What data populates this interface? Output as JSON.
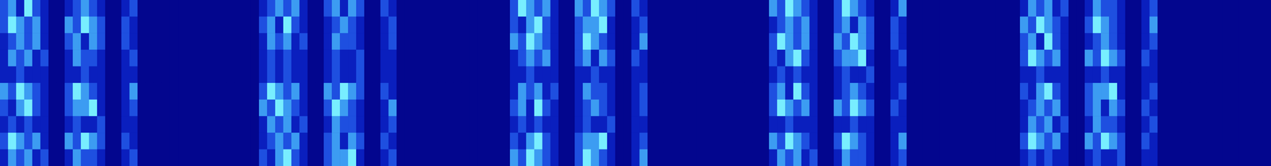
{
  "chart_data": {
    "type": "heatmap",
    "tick_labels": false,
    "zlim": [
      0,
      4
    ],
    "z": [
      [
        2,
        3,
        1,
        4,
        2,
        1,
        0,
        0,
        1,
        2,
        3,
        2,
        1,
        0,
        0,
        1,
        2,
        0,
        0,
        0,
        0,
        0,
        0,
        0,
        0,
        0,
        0,
        0,
        0,
        0,
        0,
        0,
        1,
        2,
        3,
        2,
        3,
        1,
        0,
        0,
        2,
        3,
        1,
        3,
        2,
        0,
        0,
        2,
        1,
        0,
        0,
        0,
        0,
        0,
        0,
        0,
        0,
        0,
        0,
        0,
        0,
        0,
        0,
        2,
        4,
        3,
        2,
        3,
        1,
        0,
        0,
        3,
        2,
        4,
        3,
        2,
        0,
        0,
        2,
        1,
        0,
        0,
        0,
        0,
        0,
        0,
        0,
        0,
        0,
        0,
        0,
        0,
        0,
        0,
        0,
        3,
        2,
        4,
        3,
        2,
        1,
        0,
        0,
        2,
        4,
        3,
        2,
        1,
        0,
        0,
        1,
        3,
        0,
        0,
        0,
        0,
        0,
        0,
        0,
        0,
        0,
        0,
        0,
        0,
        0,
        0,
        1,
        3,
        2,
        3,
        1,
        2,
        0,
        0,
        1,
        3,
        2,
        2,
        1,
        0,
        0,
        1,
        2,
        0,
        0,
        0,
        0,
        0,
        0,
        0,
        0,
        0,
        0,
        0,
        0,
        0,
        0
      ],
      [
        2,
        4,
        3,
        2,
        3,
        1,
        0,
        0,
        3,
        2,
        4,
        3,
        2,
        0,
        0,
        2,
        1,
        0,
        0,
        0,
        0,
        0,
        0,
        0,
        0,
        0,
        0,
        0,
        0,
        0,
        0,
        0,
        2,
        3,
        1,
        4,
        2,
        1,
        0,
        0,
        1,
        2,
        3,
        2,
        1,
        0,
        0,
        1,
        2,
        0,
        0,
        0,
        0,
        0,
        0,
        0,
        0,
        0,
        0,
        0,
        0,
        0,
        0,
        2,
        1,
        3,
        4,
        2,
        1,
        0,
        0,
        2,
        3,
        3,
        4,
        1,
        0,
        0,
        1,
        2,
        0,
        0,
        0,
        0,
        0,
        0,
        0,
        0,
        0,
        0,
        0,
        0,
        0,
        0,
        0,
        1,
        2,
        3,
        2,
        3,
        1,
        0,
        0,
        2,
        3,
        1,
        3,
        2,
        0,
        0,
        2,
        1,
        0,
        0,
        0,
        0,
        0,
        0,
        0,
        0,
        0,
        0,
        0,
        0,
        0,
        0,
        3,
        2,
        4,
        3,
        2,
        1,
        0,
        0,
        2,
        4,
        3,
        2,
        1,
        0,
        0,
        1,
        3,
        0,
        0,
        0,
        0,
        0,
        0,
        0,
        0,
        0,
        0,
        0,
        0,
        0,
        0
      ],
      [
        1,
        2,
        3,
        2,
        3,
        1,
        0,
        0,
        2,
        3,
        1,
        3,
        2,
        0,
        0,
        2,
        1,
        0,
        0,
        0,
        0,
        0,
        0,
        0,
        0,
        0,
        0,
        0,
        0,
        0,
        0,
        0,
        1,
        3,
        2,
        3,
        1,
        2,
        0,
        0,
        1,
        3,
        2,
        2,
        1,
        0,
        0,
        1,
        2,
        0,
        0,
        0,
        0,
        0,
        0,
        0,
        0,
        0,
        0,
        0,
        0,
        0,
        0,
        3,
        2,
        4,
        3,
        2,
        1,
        0,
        0,
        2,
        4,
        3,
        2,
        1,
        0,
        0,
        1,
        3,
        0,
        0,
        0,
        0,
        0,
        0,
        0,
        0,
        0,
        0,
        0,
        0,
        0,
        0,
        0,
        2,
        4,
        3,
        2,
        3,
        1,
        0,
        0,
        3,
        2,
        4,
        3,
        2,
        0,
        0,
        2,
        1,
        0,
        0,
        0,
        0,
        0,
        0,
        0,
        0,
        0,
        0,
        0,
        0,
        0,
        0,
        2,
        3,
        1,
        4,
        2,
        1,
        0,
        0,
        1,
        2,
        3,
        2,
        1,
        0,
        0,
        1,
        2,
        0,
        0,
        0,
        0,
        0,
        0,
        0,
        0,
        0,
        0,
        0,
        0,
        0,
        0
      ],
      [
        1,
        3,
        2,
        3,
        1,
        2,
        0,
        0,
        1,
        3,
        2,
        2,
        1,
        0,
        0,
        1,
        2,
        0,
        0,
        0,
        0,
        0,
        0,
        0,
        0,
        0,
        0,
        0,
        0,
        0,
        0,
        0,
        1,
        2,
        1,
        2,
        1,
        1,
        0,
        0,
        1,
        2,
        1,
        1,
        2,
        0,
        0,
        1,
        1,
        0,
        0,
        0,
        0,
        0,
        0,
        0,
        0,
        0,
        0,
        0,
        0,
        0,
        0,
        1,
        2,
        3,
        2,
        3,
        1,
        0,
        0,
        2,
        3,
        1,
        3,
        2,
        0,
        0,
        2,
        1,
        0,
        0,
        0,
        0,
        0,
        0,
        0,
        0,
        0,
        0,
        0,
        0,
        0,
        0,
        0,
        2,
        1,
        3,
        4,
        2,
        1,
        0,
        0,
        2,
        3,
        3,
        4,
        1,
        0,
        0,
        1,
        2,
        0,
        0,
        0,
        0,
        0,
        0,
        0,
        0,
        0,
        0,
        0,
        0,
        0,
        0,
        2,
        4,
        3,
        2,
        3,
        1,
        0,
        0,
        3,
        2,
        4,
        3,
        2,
        0,
        0,
        2,
        1,
        0,
        0,
        0,
        0,
        0,
        0,
        0,
        0,
        0,
        0,
        0,
        0,
        0,
        0
      ],
      [
        1,
        1,
        2,
        1,
        1,
        1,
        0,
        0,
        1,
        1,
        2,
        1,
        1,
        0,
        0,
        1,
        1,
        0,
        0,
        0,
        0,
        0,
        0,
        0,
        0,
        0,
        0,
        0,
        0,
        0,
        0,
        0,
        1,
        2,
        1,
        2,
        1,
        1,
        0,
        0,
        1,
        2,
        1,
        1,
        2,
        0,
        0,
        1,
        1,
        0,
        0,
        0,
        0,
        0,
        0,
        0,
        0,
        0,
        0,
        0,
        0,
        0,
        0,
        1,
        1,
        2,
        1,
        1,
        1,
        0,
        0,
        1,
        1,
        2,
        1,
        1,
        0,
        0,
        1,
        1,
        0,
        0,
        0,
        0,
        0,
        0,
        0,
        0,
        0,
        0,
        0,
        0,
        0,
        0,
        0,
        1,
        2,
        1,
        2,
        1,
        1,
        0,
        0,
        1,
        2,
        1,
        1,
        2,
        0,
        0,
        1,
        1,
        0,
        0,
        0,
        0,
        0,
        0,
        0,
        0,
        0,
        0,
        0,
        0,
        0,
        0,
        1,
        1,
        2,
        1,
        1,
        1,
        0,
        0,
        1,
        1,
        2,
        1,
        1,
        0,
        0,
        1,
        1,
        0,
        0,
        0,
        0,
        0,
        0,
        0,
        0,
        0,
        0,
        0,
        0,
        0,
        0
      ],
      [
        3,
        2,
        4,
        3,
        2,
        1,
        0,
        0,
        2,
        4,
        3,
        2,
        1,
        0,
        0,
        1,
        3,
        0,
        0,
        0,
        0,
        0,
        0,
        0,
        0,
        0,
        0,
        0,
        0,
        0,
        0,
        0,
        2,
        4,
        3,
        2,
        3,
        1,
        0,
        0,
        3,
        2,
        4,
        3,
        2,
        0,
        0,
        2,
        1,
        0,
        0,
        0,
        0,
        0,
        0,
        0,
        0,
        0,
        0,
        0,
        0,
        0,
        0,
        1,
        3,
        2,
        3,
        1,
        2,
        0,
        0,
        1,
        3,
        2,
        2,
        1,
        0,
        0,
        1,
        2,
        0,
        0,
        0,
        0,
        0,
        0,
        0,
        0,
        0,
        0,
        0,
        0,
        0,
        0,
        0,
        2,
        3,
        1,
        4,
        2,
        1,
        0,
        0,
        1,
        2,
        3,
        2,
        1,
        0,
        0,
        1,
        2,
        0,
        0,
        0,
        0,
        0,
        0,
        0,
        0,
        0,
        0,
        0,
        0,
        0,
        0,
        2,
        1,
        3,
        4,
        2,
        1,
        0,
        0,
        2,
        3,
        3,
        4,
        1,
        0,
        0,
        1,
        2,
        0,
        0,
        0,
        0,
        0,
        0,
        0,
        0,
        0,
        0,
        0,
        0,
        0,
        0
      ],
      [
        2,
        1,
        3,
        4,
        2,
        1,
        0,
        0,
        2,
        3,
        3,
        4,
        1,
        0,
        0,
        1,
        2,
        0,
        0,
        0,
        0,
        0,
        0,
        0,
        0,
        0,
        0,
        0,
        0,
        0,
        0,
        0,
        3,
        2,
        4,
        3,
        2,
        1,
        0,
        0,
        2,
        4,
        3,
        2,
        1,
        0,
        0,
        1,
        3,
        0,
        0,
        0,
        0,
        0,
        0,
        0,
        0,
        0,
        0,
        0,
        0,
        0,
        0,
        2,
        3,
        1,
        4,
        2,
        1,
        0,
        0,
        1,
        2,
        3,
        2,
        1,
        0,
        0,
        1,
        2,
        0,
        0,
        0,
        0,
        0,
        0,
        0,
        0,
        0,
        0,
        0,
        0,
        0,
        0,
        0,
        2,
        4,
        3,
        2,
        3,
        1,
        0,
        0,
        3,
        2,
        4,
        3,
        2,
        0,
        0,
        2,
        1,
        0,
        0,
        0,
        0,
        0,
        0,
        0,
        0,
        0,
        0,
        0,
        0,
        0,
        0,
        1,
        2,
        3,
        2,
        3,
        1,
        0,
        0,
        2,
        3,
        1,
        3,
        2,
        0,
        0,
        2,
        1,
        0,
        0,
        0,
        0,
        0,
        0,
        0,
        0,
        0,
        0,
        0,
        0,
        0,
        0
      ],
      [
        1,
        2,
        1,
        2,
        1,
        1,
        0,
        0,
        1,
        2,
        1,
        1,
        2,
        0,
        0,
        1,
        1,
        0,
        0,
        0,
        0,
        0,
        0,
        0,
        0,
        0,
        0,
        0,
        0,
        0,
        0,
        0,
        1,
        3,
        2,
        3,
        1,
        2,
        0,
        0,
        1,
        3,
        2,
        2,
        1,
        0,
        0,
        1,
        2,
        0,
        0,
        0,
        0,
        0,
        0,
        0,
        0,
        0,
        0,
        0,
        0,
        0,
        0,
        1,
        2,
        1,
        2,
        1,
        1,
        0,
        0,
        1,
        2,
        1,
        1,
        2,
        0,
        0,
        1,
        1,
        0,
        0,
        0,
        0,
        0,
        0,
        0,
        0,
        0,
        0,
        0,
        0,
        0,
        0,
        0,
        1,
        1,
        2,
        1,
        1,
        1,
        0,
        0,
        1,
        1,
        2,
        1,
        1,
        0,
        0,
        1,
        1,
        0,
        0,
        0,
        0,
        0,
        0,
        0,
        0,
        0,
        0,
        0,
        0,
        0,
        0,
        1,
        3,
        2,
        3,
        1,
        2,
        0,
        0,
        1,
        3,
        2,
        2,
        1,
        0,
        0,
        1,
        2,
        0,
        0,
        0,
        0,
        0,
        0,
        0,
        0,
        0,
        0,
        0,
        0,
        0,
        0
      ],
      [
        2,
        4,
        3,
        2,
        3,
        1,
        0,
        0,
        3,
        2,
        4,
        3,
        2,
        0,
        0,
        2,
        1,
        0,
        0,
        0,
        0,
        0,
        0,
        0,
        0,
        0,
        0,
        0,
        0,
        0,
        0,
        0,
        1,
        2,
        3,
        2,
        3,
        1,
        0,
        0,
        2,
        3,
        1,
        3,
        2,
        0,
        0,
        2,
        1,
        0,
        0,
        0,
        0,
        0,
        0,
        0,
        0,
        0,
        0,
        0,
        0,
        0,
        0,
        2,
        1,
        3,
        4,
        2,
        1,
        0,
        0,
        2,
        3,
        3,
        4,
        1,
        0,
        0,
        1,
        2,
        0,
        0,
        0,
        0,
        0,
        0,
        0,
        0,
        0,
        0,
        0,
        0,
        0,
        0,
        0,
        3,
        2,
        4,
        3,
        2,
        1,
        0,
        0,
        2,
        4,
        3,
        2,
        1,
        0,
        0,
        1,
        3,
        0,
        0,
        0,
        0,
        0,
        0,
        0,
        0,
        0,
        0,
        0,
        0,
        0,
        0,
        2,
        4,
        3,
        2,
        3,
        1,
        0,
        0,
        3,
        2,
        4,
        3,
        2,
        0,
        0,
        2,
        1,
        0,
        0,
        0,
        0,
        0,
        0,
        0,
        0,
        0,
        0,
        0,
        0,
        0,
        0
      ],
      [
        1,
        3,
        2,
        3,
        1,
        2,
        0,
        0,
        1,
        3,
        2,
        2,
        1,
        0,
        0,
        1,
        2,
        0,
        0,
        0,
        0,
        0,
        0,
        0,
        0,
        0,
        0,
        0,
        0,
        0,
        0,
        0,
        2,
        1,
        3,
        4,
        2,
        1,
        0,
        0,
        2,
        3,
        3,
        4,
        1,
        0,
        0,
        1,
        2,
        0,
        0,
        0,
        0,
        0,
        0,
        0,
        0,
        0,
        0,
        0,
        0,
        0,
        0,
        3,
        2,
        4,
        3,
        2,
        1,
        0,
        0,
        2,
        4,
        3,
        2,
        1,
        0,
        0,
        1,
        3,
        0,
        0,
        0,
        0,
        0,
        0,
        0,
        0,
        0,
        0,
        0,
        0,
        0,
        0,
        0,
        1,
        3,
        2,
        3,
        1,
        2,
        0,
        0,
        1,
        3,
        2,
        2,
        1,
        0,
        0,
        1,
        2,
        0,
        0,
        0,
        0,
        0,
        0,
        0,
        0,
        0,
        0,
        0,
        0,
        0,
        0,
        1,
        2,
        1,
        2,
        1,
        1,
        0,
        0,
        1,
        2,
        1,
        1,
        2,
        0,
        0,
        1,
        1,
        0,
        0,
        0,
        0,
        0,
        0,
        0,
        0,
        0,
        0,
        0,
        0,
        0,
        0
      ]
    ]
  }
}
